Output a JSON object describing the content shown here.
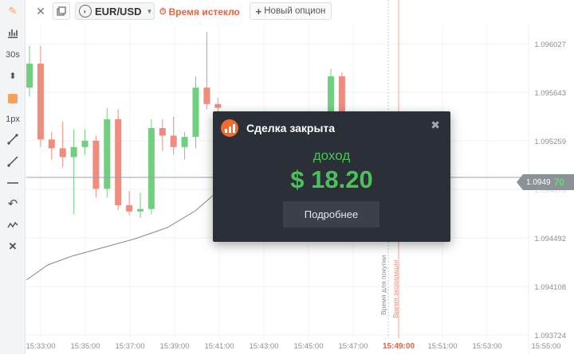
{
  "toolbar": {
    "items": [
      {
        "icon": "pencil-icon"
      },
      {
        "icon": "indicators-icon"
      },
      {
        "label": "30s"
      },
      {
        "icon": "up-down-arrows-icon"
      },
      {
        "icon": "color-swatch-icon",
        "color": "#f7a058"
      },
      {
        "label": "1px"
      },
      {
        "icon": "trend-line-icon"
      },
      {
        "icon": "ray-line-icon"
      },
      {
        "icon": "horizontal-line-icon"
      },
      {
        "icon": "undo-icon"
      },
      {
        "icon": "wave-icon"
      },
      {
        "icon": "delete-icon"
      }
    ]
  },
  "header": {
    "asset": "EUR/USD",
    "status": "Время истекло",
    "new_option": "Новый опцион"
  },
  "price_axis": [
    "1.096027",
    "1.095643",
    "1.095259",
    "1.094876",
    "1.094492",
    "1.094108",
    "1.093724"
  ],
  "time_axis": [
    "15:33:00",
    "15:35:00",
    "15:37:00",
    "15:39:00",
    "15:41:00",
    "15:43:00",
    "15:45:00",
    "15:47:00",
    "15:51:00",
    "15:53:00",
    "15:55:00"
  ],
  "current_time": "15:49:00",
  "price_tag": {
    "value": "1.0949",
    "tail": "70"
  },
  "vertical_labels": {
    "buy_time": "Время для покупки",
    "expiry_time": "Время экспирации"
  },
  "modal": {
    "title": "Сделка закрыта",
    "income_label": "доход",
    "income_value": "$ 18.20",
    "details_button": "Подробнее"
  },
  "colors": {
    "up": "#72cf80",
    "down": "#f08c7e",
    "accent": "#f25f38",
    "profit": "#4cc15a"
  },
  "chart_data": {
    "type": "candlestick",
    "interval": "30s",
    "candles": [
      {
        "o": 1.09568,
        "h": 1.09601,
        "l": 1.09561,
        "c": 1.09587
      },
      {
        "o": 1.09587,
        "h": 1.09601,
        "l": 1.09521,
        "c": 1.09527
      },
      {
        "o": 1.09527,
        "h": 1.09533,
        "l": 1.09511,
        "c": 1.0952
      },
      {
        "o": 1.0952,
        "h": 1.09541,
        "l": 1.09505,
        "c": 1.09513
      },
      {
        "o": 1.09513,
        "h": 1.09535,
        "l": 1.09468,
        "c": 1.09521
      },
      {
        "o": 1.09521,
        "h": 1.09535,
        "l": 1.09515,
        "c": 1.09526
      },
      {
        "o": 1.09526,
        "h": 1.0953,
        "l": 1.09481,
        "c": 1.09488
      },
      {
        "o": 1.09488,
        "h": 1.09552,
        "l": 1.09481,
        "c": 1.09543
      },
      {
        "o": 1.09543,
        "h": 1.09551,
        "l": 1.09471,
        "c": 1.09475
      },
      {
        "o": 1.09475,
        "h": 1.09486,
        "l": 1.09467,
        "c": 1.0947
      },
      {
        "o": 1.0947,
        "h": 1.09485,
        "l": 1.09465,
        "c": 1.09472
      },
      {
        "o": 1.09472,
        "h": 1.09543,
        "l": 1.09468,
        "c": 1.09536
      },
      {
        "o": 1.09536,
        "h": 1.09543,
        "l": 1.09518,
        "c": 1.0953
      },
      {
        "o": 1.0953,
        "h": 1.09545,
        "l": 1.09515,
        "c": 1.09521
      },
      {
        "o": 1.09521,
        "h": 1.09533,
        "l": 1.09511,
        "c": 1.09529
      },
      {
        "o": 1.09529,
        "h": 1.09577,
        "l": 1.0952,
        "c": 1.09568
      },
      {
        "o": 1.09568,
        "h": 1.09612,
        "l": 1.09551,
        "c": 1.09555
      },
      {
        "o": 1.09555,
        "h": 1.0956,
        "l": 1.0954,
        "c": 1.09552
      }
    ],
    "late_candles": [
      {
        "o": 1.09521,
        "h": 1.09583,
        "l": 1.09514,
        "c": 1.09577
      },
      {
        "o": 1.09577,
        "h": 1.0958,
        "l": 1.09525,
        "c": 1.09532
      }
    ],
    "price_line": 1.09497,
    "ylim": [
      1.0937,
      1.0962
    ]
  }
}
